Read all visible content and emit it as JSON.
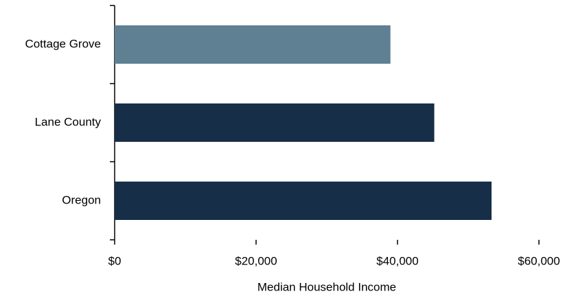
{
  "chart_data": {
    "type": "hbar",
    "categories": [
      "Cottage Grove",
      "Lane County",
      "Oregon"
    ],
    "values": [
      39000,
      45200,
      53300
    ],
    "colors": [
      "#5f8093",
      "#172e48",
      "#172e48"
    ],
    "xlabel": "Median Household Income",
    "xlim": [
      0,
      60000
    ],
    "xticks": [
      {
        "value": 0,
        "label": "$0"
      },
      {
        "value": 20000,
        "label": "$20,000"
      },
      {
        "value": 40000,
        "label": "$40,000"
      },
      {
        "value": 60000,
        "label": "$60,000"
      }
    ]
  }
}
